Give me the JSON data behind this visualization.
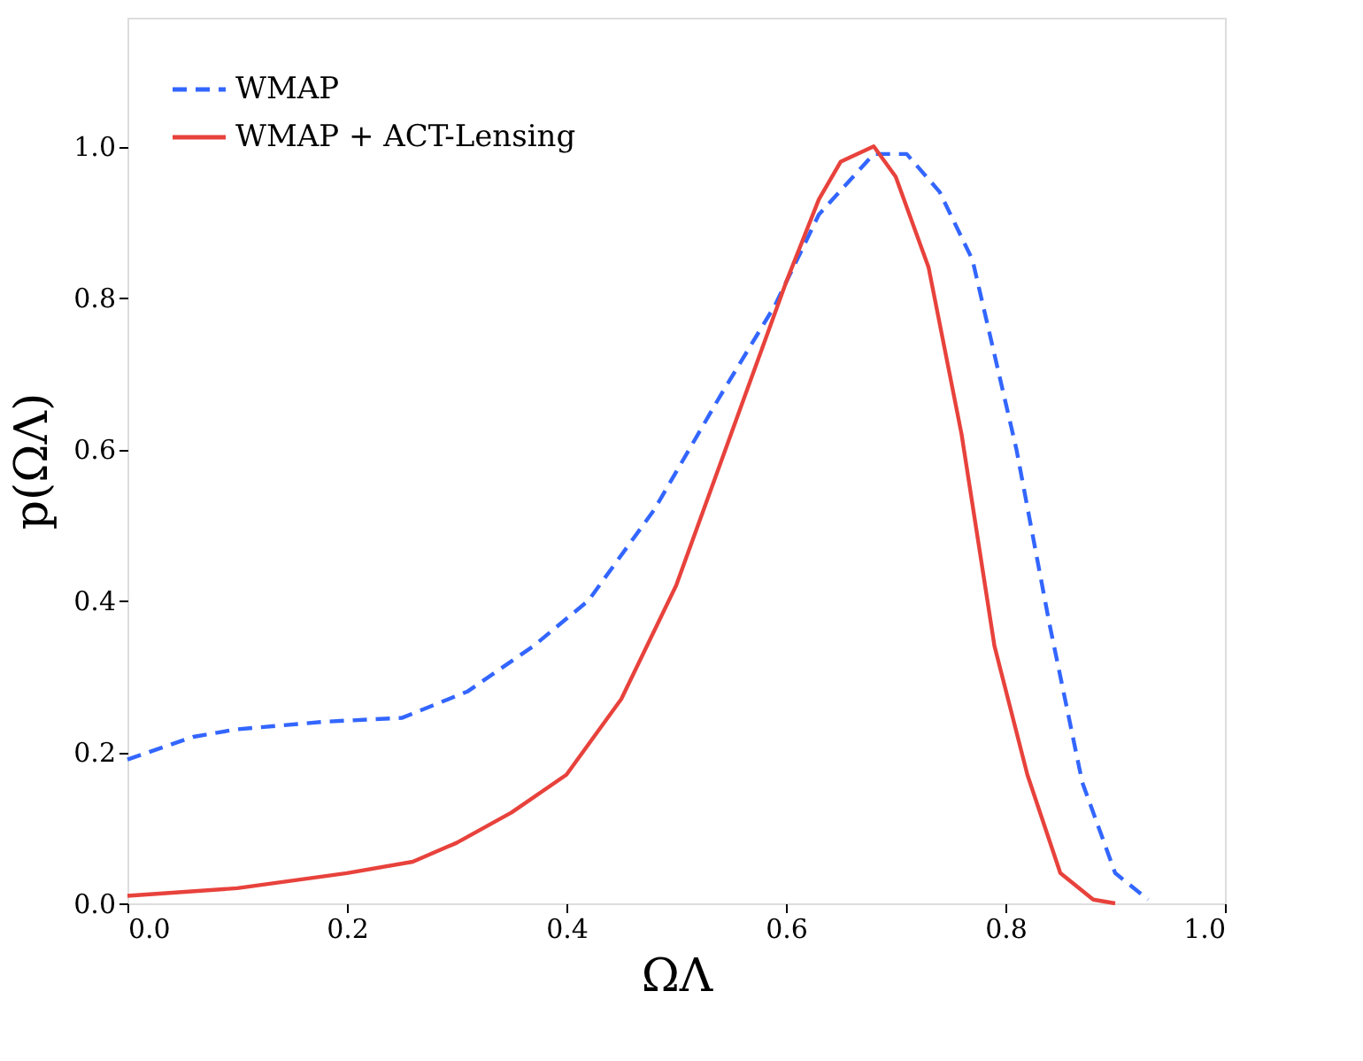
{
  "chart_data": {
    "type": "line",
    "xlabel": "ΩΛ",
    "ylabel": "p(ΩΛ)",
    "xlim": [
      0,
      1.0
    ],
    "xticks": [
      {
        "value": 0,
        "label": "0.0"
      },
      {
        "value": 0.2,
        "label": "0.2"
      },
      {
        "value": 0.4,
        "label": "0.4"
      },
      {
        "value": 0.6,
        "label": "0.6"
      },
      {
        "value": 0.8,
        "label": "0.8"
      },
      {
        "value": 1.0,
        "label": "1.0"
      }
    ],
    "ylim": [
      0,
      1.17
    ],
    "yticks": [
      {
        "value": 0,
        "label": "0.0"
      },
      {
        "value": 0.2,
        "label": "0.2"
      },
      {
        "value": 0.4,
        "label": "0.4"
      },
      {
        "value": 0.6,
        "label": "0.6"
      },
      {
        "value": 0.8,
        "label": "0.8"
      },
      {
        "value": 1.0,
        "label": "1.0"
      }
    ],
    "grid": false,
    "legend": "top left",
    "marker": "none",
    "series": [
      {
        "name": "WMAP",
        "color": "#3366ff",
        "line_style": "dashed",
        "x": [
          0,
          0.06,
          0.1,
          0.18,
          0.25,
          0.31,
          0.37,
          0.42,
          0.48,
          0.54,
          0.59,
          0.63,
          0.68,
          0.71,
          0.74,
          0.77,
          0.81,
          0.84,
          0.87,
          0.9,
          0.93
        ],
        "values": [
          0.19,
          0.22,
          0.23,
          0.24,
          0.245,
          0.28,
          0.34,
          0.4,
          0.52,
          0.67,
          0.79,
          0.91,
          0.99,
          0.99,
          0.94,
          0.85,
          0.6,
          0.37,
          0.16,
          0.04,
          0.005
        ]
      },
      {
        "name": "WMAP + ACT-Lensing",
        "color": "#e8423c",
        "line_style": "solid",
        "x": [
          0,
          0.1,
          0.2,
          0.26,
          0.3,
          0.35,
          0.4,
          0.45,
          0.5,
          0.55,
          0.6,
          0.63,
          0.65,
          0.68,
          0.7,
          0.73,
          0.76,
          0.79,
          0.82,
          0.85,
          0.88,
          0.9
        ],
        "values": [
          0.01,
          0.02,
          0.04,
          0.055,
          0.08,
          0.12,
          0.17,
          0.27,
          0.42,
          0.62,
          0.82,
          0.93,
          0.98,
          1.0,
          0.96,
          0.84,
          0.62,
          0.34,
          0.17,
          0.04,
          0.005,
          0
        ]
      }
    ]
  }
}
